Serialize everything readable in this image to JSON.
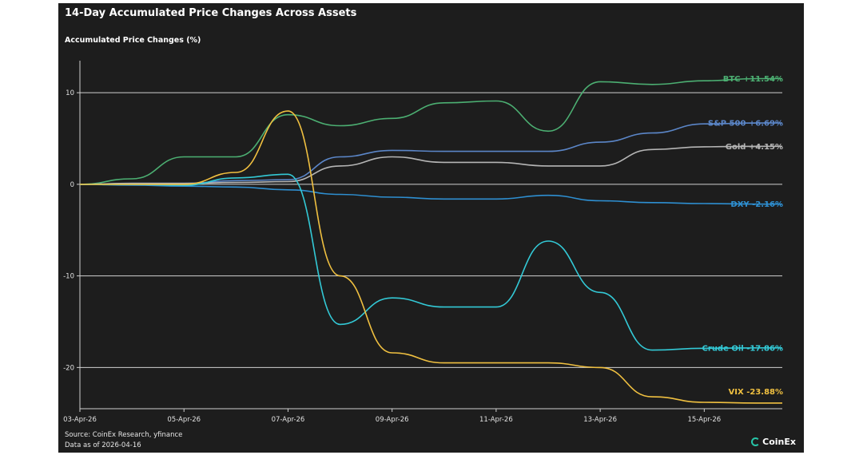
{
  "page": {
    "title": "14-Day Accumulated Price Changes Across Assets",
    "source": "Source: CoinEx Research, yfinance",
    "data_as_of": "Data as of 2026-04-16",
    "brand": "CoinEx",
    "background": "#1d1d1d"
  },
  "chart_data": {
    "type": "line",
    "title": "14-Day Accumulated Price Changes Across Assets",
    "xlabel": "",
    "ylabel": "Accumulated Price Changes (%)",
    "x": [
      "2026-04-03",
      "2026-04-04",
      "2026-04-05",
      "2026-04-06",
      "2026-04-07",
      "2026-04-08",
      "2026-04-09",
      "2026-04-10",
      "2026-04-11",
      "2026-04-12",
      "2026-04-13",
      "2026-04-14",
      "2026-04-15",
      "2026-04-16"
    ],
    "xticks": [
      "03-Apr-26",
      "05-Apr-26",
      "07-Apr-26",
      "09-Apr-26",
      "11-Apr-26",
      "13-Apr-26",
      "15-Apr-26"
    ],
    "yticks": [
      10,
      0,
      -10,
      -20
    ],
    "ylim": [
      -24.5,
      13.5
    ],
    "grid": true,
    "series": [
      {
        "name": "BTC",
        "color": "#4caf72",
        "label": "BTC +11.54%",
        "values": [
          0,
          0.6,
          3.0,
          3.0,
          7.6,
          6.4,
          7.2,
          8.9,
          9.1,
          5.8,
          11.2,
          10.9,
          11.3,
          11.54
        ]
      },
      {
        "name": "S&P 500",
        "color": "#5b86c8",
        "label": "S&P 500 +6.69%",
        "values": [
          0,
          0.1,
          0.1,
          0.4,
          0.5,
          3.0,
          3.7,
          3.6,
          3.6,
          3.6,
          4.6,
          5.6,
          6.6,
          6.69
        ]
      },
      {
        "name": "Gold",
        "color": "#b5b5b5",
        "label": "Gold +4.15%",
        "values": [
          0,
          0.1,
          0.1,
          0.2,
          0.3,
          2.0,
          3.0,
          2.4,
          2.4,
          2.0,
          2.0,
          3.8,
          4.1,
          4.15
        ]
      },
      {
        "name": "DXY",
        "color": "#2e8fd1",
        "label": "DXY -2.16%",
        "values": [
          0,
          -0.1,
          -0.2,
          -0.3,
          -0.6,
          -1.1,
          -1.4,
          -1.6,
          -1.6,
          -1.2,
          -1.8,
          -2.0,
          -2.1,
          -2.16
        ]
      },
      {
        "name": "Crude Oil",
        "color": "#33c9d6",
        "label": "Crude Oil -17.86%",
        "values": [
          0,
          0,
          -0.1,
          0.7,
          1.1,
          -15.3,
          -12.4,
          -13.4,
          -13.4,
          -6.2,
          -11.8,
          -18.1,
          -17.9,
          -17.86
        ]
      },
      {
        "name": "VIX",
        "color": "#f0c040",
        "label": "VIX -23.88%",
        "values": [
          0,
          0,
          0,
          1.3,
          8.0,
          -10.0,
          -18.4,
          -19.5,
          -19.5,
          -19.5,
          -20.0,
          -23.2,
          -23.8,
          -23.88
        ]
      }
    ]
  }
}
